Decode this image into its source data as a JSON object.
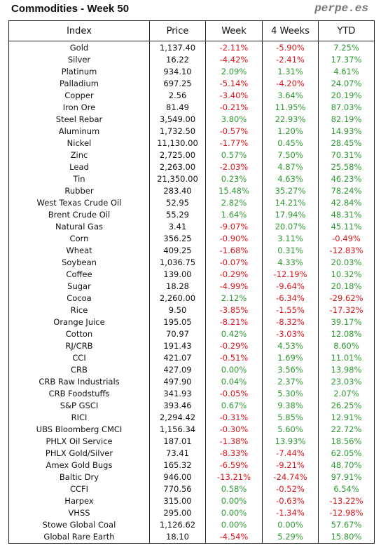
{
  "header": {
    "title": "Commodities - Week 50",
    "brand": "perpe.es"
  },
  "table": {
    "columns": [
      "Index",
      "Price",
      "Week",
      "4 Weeks",
      "YTD"
    ],
    "rows": [
      [
        "Gold",
        "1,137.40",
        "-2.11%",
        "-5.90%",
        "7.25%"
      ],
      [
        "Silver",
        "16.22",
        "-4.42%",
        "-2.41%",
        "17.37%"
      ],
      [
        "Platinum",
        "934.10",
        "2.09%",
        "1.31%",
        "4.61%"
      ],
      [
        "Palladium",
        "697.25",
        "-5.14%",
        "-4.20%",
        "24.07%"
      ],
      [
        "Copper",
        "2.56",
        "-3.40%",
        "3.64%",
        "20.19%"
      ],
      [
        "Iron Ore",
        "81.49",
        "-0.21%",
        "11.95%",
        "87.03%"
      ],
      [
        "Steel Rebar",
        "3,549.00",
        "3.80%",
        "22.93%",
        "82.19%"
      ],
      [
        "Aluminum",
        "1,732.50",
        "-0.57%",
        "1.20%",
        "14.93%"
      ],
      [
        "Nickel",
        "11,130.00",
        "-1.77%",
        "0.45%",
        "28.45%"
      ],
      [
        "Zinc",
        "2,725.00",
        "0.57%",
        "7.50%",
        "70.31%"
      ],
      [
        "Lead",
        "2,263.00",
        "-2.03%",
        "4.87%",
        "25.58%"
      ],
      [
        "Tin",
        "21,350.00",
        "0.23%",
        "4.63%",
        "46.23%"
      ],
      [
        "Rubber",
        "283.40",
        "15.48%",
        "35.27%",
        "78.24%"
      ],
      [
        "West Texas Crude Oil",
        "52.95",
        "2.82%",
        "14.21%",
        "42.84%"
      ],
      [
        "Brent Crude Oil",
        "55.29",
        "1.64%",
        "17.94%",
        "48.31%"
      ],
      [
        "Natural Gas",
        "3.41",
        "-9.07%",
        "20.07%",
        "45.11%"
      ],
      [
        "Corn",
        "356.25",
        "-0.90%",
        "3.11%",
        "-0.49%"
      ],
      [
        "Wheat",
        "409.25",
        "-1.68%",
        "0.31%",
        "-12.83%"
      ],
      [
        "Soybean",
        "1,036.75",
        "-0.07%",
        "4.33%",
        "20.03%"
      ],
      [
        "Coffee",
        "139.00",
        "-0.29%",
        "-12.19%",
        "10.32%"
      ],
      [
        "Sugar",
        "18.28",
        "-4.99%",
        "-9.64%",
        "20.18%"
      ],
      [
        "Cocoa",
        "2,260.00",
        "2.12%",
        "-6.34%",
        "-29.62%"
      ],
      [
        "Rice",
        "9.50",
        "-3.85%",
        "-1.55%",
        "-17.32%"
      ],
      [
        "Orange Juice",
        "195.05",
        "-8.21%",
        "-8.32%",
        "39.17%"
      ],
      [
        "Cotton",
        "70.97",
        "0.42%",
        "-3.03%",
        "12.08%"
      ],
      [
        "RJ/CRB",
        "191.43",
        "-0.29%",
        "4.53%",
        "8.60%"
      ],
      [
        "CCI",
        "421.07",
        "-0.51%",
        "1.69%",
        "11.01%"
      ],
      [
        "CRB",
        "427.09",
        "0.00%",
        "3.56%",
        "13.98%"
      ],
      [
        "CRB Raw Industrials",
        "497.90",
        "0.04%",
        "2.37%",
        "23.03%"
      ],
      [
        "CRB Foodstuffs",
        "341.93",
        "-0.05%",
        "5.30%",
        "2.07%"
      ],
      [
        "S&P GSCI",
        "393.46",
        "0.67%",
        "9.38%",
        "26.25%"
      ],
      [
        "RICI",
        "2,294.42",
        "-0.31%",
        "5.85%",
        "12.91%"
      ],
      [
        "UBS Bloomberg CMCI",
        "1,156.34",
        "-0.30%",
        "5.60%",
        "22.72%"
      ],
      [
        "PHLX Oil Service",
        "187.01",
        "-1.38%",
        "13.93%",
        "18.56%"
      ],
      [
        "PHLX Gold/Silver",
        "73.41",
        "-8.33%",
        "-7.44%",
        "62.05%"
      ],
      [
        "Amex Gold Bugs",
        "165.32",
        "-6.59%",
        "-9.21%",
        "48.70%"
      ],
      [
        "Baltic Dry",
        "946.00",
        "-13.21%",
        "-24.74%",
        "97.91%"
      ],
      [
        "CCFI",
        "770.56",
        "0.58%",
        "-0.52%",
        "6.54%"
      ],
      [
        "Harpex",
        "315.00",
        "0.00%",
        "-0.63%",
        "-13.22%"
      ],
      [
        "VHSS",
        "295.00",
        "0.00%",
        "-1.34%",
        "-12.98%"
      ],
      [
        "Stowe Global Coal",
        "1,126.62",
        "0.00%",
        "0.00%",
        "57.67%"
      ],
      [
        "Global Rare Earth",
        "18.10",
        "-4.54%",
        "5.29%",
        "15.80%"
      ]
    ]
  },
  "colors": {
    "negative": "#e0161d",
    "positive": "#2e9933",
    "border": "#222222"
  }
}
